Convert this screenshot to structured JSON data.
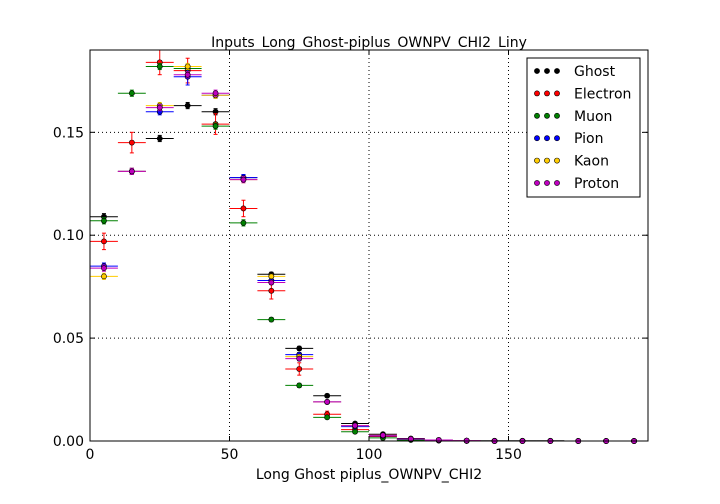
{
  "chart_data": {
    "type": "scatter",
    "title": "Inputs_Long_Ghost-piplus_OWNPV_CHI2_Liny",
    "xlabel": "Long Ghost piplus_OWNPV_CHI2",
    "ylabel": "",
    "xlim": [
      0,
      200
    ],
    "ylim": [
      0,
      0.19
    ],
    "xticks": [
      0,
      50,
      100,
      150
    ],
    "yticks": [
      0.0,
      0.05,
      0.1,
      0.15
    ],
    "xtick_labels": [
      "0",
      "50",
      "100",
      "150"
    ],
    "ytick_labels": [
      "0.00",
      "0.05",
      "0.10",
      "0.15"
    ],
    "grid": true,
    "legend_position": "top-right",
    "bin_width": 10,
    "x": [
      5,
      15,
      25,
      35,
      45,
      55,
      65,
      75,
      85,
      95,
      105,
      115,
      125,
      135,
      145,
      155,
      165,
      175,
      185,
      195
    ],
    "series": [
      {
        "name": "Ghost",
        "color": "#000000",
        "values": [
          0.109,
          0.131,
          0.147,
          0.163,
          0.16,
          0.128,
          0.081,
          0.045,
          0.022,
          0.0085,
          0.0033,
          0.0012,
          0.0005,
          0.0002,
          0.0001,
          0.0001,
          0.0001,
          0.0,
          0.0,
          0.0
        ],
        "errors": [
          0.0015,
          0.0015,
          0.0015,
          0.0015,
          0.0015,
          0.0015,
          0.001,
          0.001,
          0.0007,
          0.0005,
          0.0003,
          0.0002,
          0.0001,
          0.0001,
          0.0001,
          0.0001,
          0.0001,
          0.0,
          0.0,
          0.0
        ]
      },
      {
        "name": "Electron",
        "color": "#ff0000",
        "values": [
          0.097,
          0.145,
          0.184,
          0.18,
          0.154,
          0.113,
          0.073,
          0.035,
          0.013,
          0.0055,
          0.0022,
          0.0008,
          0.0003,
          0.0001,
          0.0,
          0.0,
          0.0,
          0.0,
          0.0,
          0.0
        ],
        "errors": [
          0.004,
          0.005,
          0.006,
          0.006,
          0.005,
          0.004,
          0.004,
          0.003,
          0.0015,
          0.001,
          0.0005,
          0.0003,
          0.0001,
          0.0001,
          0.0,
          0.0,
          0.0,
          0.0,
          0.0,
          0.0
        ]
      },
      {
        "name": "Muon",
        "color": "#008000",
        "values": [
          0.107,
          0.169,
          0.182,
          0.181,
          0.153,
          0.106,
          0.059,
          0.027,
          0.0115,
          0.0045,
          0.0015,
          0.0005,
          0.0002,
          0.0001,
          0.0,
          0.0,
          0.0,
          0.0,
          0.0,
          0.0
        ],
        "errors": [
          0.0015,
          0.0015,
          0.0015,
          0.0015,
          0.0015,
          0.0015,
          0.001,
          0.001,
          0.0005,
          0.0003,
          0.0002,
          0.0001,
          0.0001,
          0.0,
          0.0,
          0.0,
          0.0,
          0.0,
          0.0,
          0.0
        ]
      },
      {
        "name": "Pion",
        "color": "#0000ff",
        "values": [
          0.085,
          0.131,
          0.16,
          0.177,
          0.168,
          0.128,
          0.078,
          0.042,
          0.019,
          0.007,
          0.0025,
          0.0009,
          0.0004,
          0.0001,
          0.0,
          0.0,
          0.0,
          0.0,
          0.0,
          0.0
        ],
        "errors": [
          0.0015,
          0.0015,
          0.0015,
          0.004,
          0.0015,
          0.0015,
          0.001,
          0.001,
          0.0005,
          0.0003,
          0.0002,
          0.0001,
          0.0001,
          0.0,
          0.0,
          0.0,
          0.0,
          0.0,
          0.0,
          0.0
        ]
      },
      {
        "name": "Kaon",
        "color": "#ffcc00",
        "values": [
          0.08,
          0.131,
          0.163,
          0.182,
          0.168,
          0.127,
          0.08,
          0.041,
          0.019,
          0.0075,
          0.0028,
          0.001,
          0.0004,
          0.0001,
          0.0,
          0.0,
          0.0,
          0.0,
          0.0,
          0.0
        ],
        "errors": [
          0.0015,
          0.0015,
          0.0015,
          0.0015,
          0.0015,
          0.0015,
          0.001,
          0.001,
          0.0005,
          0.0003,
          0.0002,
          0.0001,
          0.0001,
          0.0,
          0.0,
          0.0,
          0.0,
          0.0,
          0.0,
          0.0
        ]
      },
      {
        "name": "Proton",
        "color": "#bf00bf",
        "values": [
          0.084,
          0.131,
          0.162,
          0.178,
          0.169,
          0.127,
          0.077,
          0.04,
          0.019,
          0.0075,
          0.0028,
          0.001,
          0.0005,
          0.0002,
          0.0,
          0.0,
          0.0,
          0.0,
          0.0,
          0.0
        ],
        "errors": [
          0.0015,
          0.0015,
          0.0015,
          0.0015,
          0.0015,
          0.0015,
          0.001,
          0.001,
          0.0005,
          0.0003,
          0.0002,
          0.0001,
          0.0001,
          0.0,
          0.0,
          0.0,
          0.0,
          0.0,
          0.0,
          0.0
        ]
      }
    ]
  }
}
